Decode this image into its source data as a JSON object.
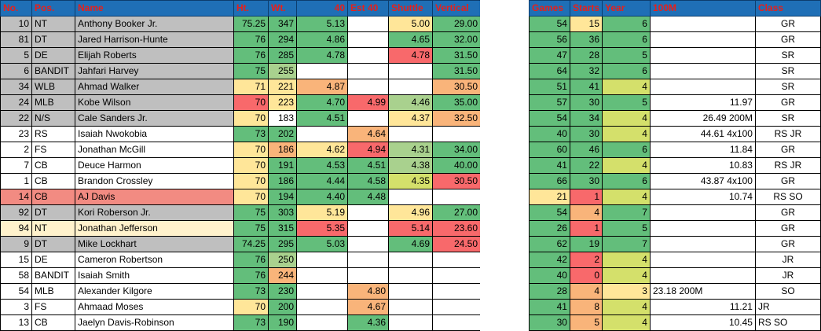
{
  "colors": {
    "header_bg": "#1f6fb6",
    "header_text": "#e8201a",
    "gray": "#bfbfbf",
    "red_row": "#f28b82",
    "cream_row": "#fff2cc",
    "white": "#ffffff",
    "g": "#63be7b",
    "lg": "#a9d18e",
    "yg": "#d4e06b",
    "y": "#ffe699",
    "o": "#f9b47a",
    "r": "#f8696b"
  },
  "left_headers": [
    "No.",
    "Pos.",
    "Name",
    "Ht.",
    "Wt.",
    "40",
    "Est 40",
    "Shuttle",
    "Vertical"
  ],
  "right_headers": [
    "Games",
    "Starts",
    "Year",
    "100M",
    "Class"
  ],
  "rows": [
    {
      "no": "10",
      "pos": "NT",
      "name": "Anthony Booker Jr.",
      "ht": "75.25",
      "wt": "347",
      "forty": "5.13",
      "est40": "",
      "shuttle": "5.00",
      "vertical": "29.00",
      "games": "54",
      "starts": "15",
      "year": "6",
      "m100": "",
      "m100_align": "r",
      "cls": "GR",
      "cls_align": "c",
      "fill": "gray",
      "c_ht": "g",
      "c_wt": "g",
      "c_forty": "g",
      "c_est40": "white",
      "c_shuttle": "y",
      "c_vertical": "g",
      "c_games": "g",
      "c_starts": "y",
      "c_year": "g"
    },
    {
      "no": "81",
      "pos": "DT",
      "name": "Jared Harrison-Hunte",
      "ht": "76",
      "wt": "294",
      "forty": "4.86",
      "est40": "",
      "shuttle": "4.65",
      "vertical": "32.00",
      "games": "56",
      "starts": "36",
      "year": "6",
      "m100": "",
      "m100_align": "r",
      "cls": "GR",
      "cls_align": "c",
      "fill": "gray",
      "c_ht": "g",
      "c_wt": "g",
      "c_forty": "g",
      "c_est40": "white",
      "c_shuttle": "g",
      "c_vertical": "g",
      "c_games": "g",
      "c_starts": "g",
      "c_year": "g"
    },
    {
      "no": "5",
      "pos": "DE",
      "name": "Elijah Roberts",
      "ht": "76",
      "wt": "285",
      "forty": "4.78",
      "est40": "",
      "shuttle": "4.78",
      "vertical": "31.50",
      "games": "47",
      "starts": "28",
      "year": "5",
      "m100": "",
      "m100_align": "r",
      "cls": "SR",
      "cls_align": "c",
      "fill": "gray",
      "c_ht": "g",
      "c_wt": "g",
      "c_forty": "g",
      "c_est40": "white",
      "c_shuttle": "r",
      "c_vertical": "g",
      "c_games": "g",
      "c_starts": "g",
      "c_year": "g"
    },
    {
      "no": "6",
      "pos": "BANDIT",
      "name": "Jahfari Harvey",
      "ht": "75",
      "wt": "255",
      "forty": "",
      "est40": "",
      "shuttle": "",
      "vertical": "31.50",
      "games": "64",
      "starts": "32",
      "year": "6",
      "m100": "",
      "m100_align": "r",
      "cls": "SR",
      "cls_align": "c",
      "fill": "gray",
      "c_ht": "g",
      "c_wt": "lg",
      "c_forty": "white",
      "c_est40": "white",
      "c_shuttle": "white",
      "c_vertical": "g",
      "c_games": "g",
      "c_starts": "g",
      "c_year": "g"
    },
    {
      "no": "34",
      "pos": "WLB",
      "name": "Ahmad Walker",
      "ht": "71",
      "wt": "221",
      "forty": "4.87",
      "est40": "",
      "shuttle": "",
      "vertical": "30.50",
      "games": "51",
      "starts": "41",
      "year": "4",
      "m100": "",
      "m100_align": "r",
      "cls": "SR",
      "cls_align": "c",
      "fill": "gray",
      "c_ht": "y",
      "c_wt": "y",
      "c_forty": "o",
      "c_est40": "white",
      "c_shuttle": "white",
      "c_vertical": "o",
      "c_games": "g",
      "c_starts": "g",
      "c_year": "yg"
    },
    {
      "no": "24",
      "pos": "MLB",
      "name": "Kobe Wilson",
      "ht": "70",
      "wt": "223",
      "forty": "4.70",
      "est40": "4.99",
      "shuttle": "4.46",
      "vertical": "35.00",
      "games": "57",
      "starts": "30",
      "year": "5",
      "m100": "11.97",
      "m100_align": "r",
      "cls": "GR",
      "cls_align": "c",
      "fill": "gray",
      "c_ht": "r",
      "c_wt": "y",
      "c_forty": "g",
      "c_est40": "r",
      "c_shuttle": "lg",
      "c_vertical": "g",
      "c_games": "g",
      "c_starts": "g",
      "c_year": "g"
    },
    {
      "no": "22",
      "pos": "N/S",
      "name": "Cale Sanders Jr.",
      "ht": "70",
      "wt": "183",
      "forty": "4.51",
      "est40": "",
      "shuttle": "4.37",
      "vertical": "32.50",
      "games": "54",
      "starts": "34",
      "year": "4",
      "m100": "26.49 200M",
      "m100_align": "r",
      "cls": "SR",
      "cls_align": "c",
      "fill": "gray",
      "c_ht": "y",
      "c_wt": "white",
      "c_forty": "g",
      "c_est40": "white",
      "c_shuttle": "y",
      "c_vertical": "o",
      "c_games": "g",
      "c_starts": "g",
      "c_year": "yg"
    },
    {
      "no": "23",
      "pos": "RS",
      "name": "Isaiah Nwokobia",
      "ht": "73",
      "wt": "202",
      "forty": "",
      "est40": "4.64",
      "shuttle": "",
      "vertical": "",
      "games": "40",
      "starts": "30",
      "year": "4",
      "m100": "44.61 4x100",
      "m100_align": "r",
      "cls": "RS JR",
      "cls_align": "c",
      "fill": "white",
      "c_ht": "g",
      "c_wt": "g",
      "c_forty": "white",
      "c_est40": "o",
      "c_shuttle": "white",
      "c_vertical": "white",
      "c_games": "g",
      "c_starts": "g",
      "c_year": "yg"
    },
    {
      "no": "2",
      "pos": "FS",
      "name": "Jonathan McGill",
      "ht": "70",
      "wt": "186",
      "forty": "4.62",
      "est40": "4.94",
      "shuttle": "4.31",
      "vertical": "34.00",
      "games": "60",
      "starts": "46",
      "year": "6",
      "m100": "11.84",
      "m100_align": "r",
      "cls": "GR",
      "cls_align": "c",
      "fill": "white",
      "c_ht": "y",
      "c_wt": "o",
      "c_forty": "y",
      "c_est40": "r",
      "c_shuttle": "lg",
      "c_vertical": "g",
      "c_games": "g",
      "c_starts": "g",
      "c_year": "g"
    },
    {
      "no": "7",
      "pos": "CB",
      "name": "Deuce Harmon",
      "ht": "70",
      "wt": "191",
      "forty": "4.53",
      "est40": "4.51",
      "shuttle": "4.38",
      "vertical": "40.00",
      "games": "41",
      "starts": "22",
      "year": "4",
      "m100": "10.83",
      "m100_align": "r",
      "cls": "RS JR",
      "cls_align": "c",
      "fill": "white",
      "c_ht": "y",
      "c_wt": "g",
      "c_forty": "g",
      "c_est40": "g",
      "c_shuttle": "lg",
      "c_vertical": "g",
      "c_games": "g",
      "c_starts": "g",
      "c_year": "yg"
    },
    {
      "no": "1",
      "pos": "CB",
      "name": "Brandon Crossley",
      "ht": "70",
      "wt": "186",
      "forty": "4.44",
      "est40": "4.58",
      "shuttle": "4.35",
      "vertical": "30.50",
      "games": "66",
      "starts": "30",
      "year": "6",
      "m100": "43.87 4x100",
      "m100_align": "r",
      "cls": "GR",
      "cls_align": "c",
      "fill": "white",
      "c_ht": "y",
      "c_wt": "g",
      "c_forty": "g",
      "c_est40": "g",
      "c_shuttle": "yg",
      "c_vertical": "r",
      "c_games": "g",
      "c_starts": "g",
      "c_year": "g"
    },
    {
      "no": "14",
      "pos": "CB",
      "name": "AJ Davis",
      "ht": "70",
      "wt": "194",
      "forty": "4.40",
      "est40": "4.48",
      "shuttle": "",
      "vertical": "",
      "games": "21",
      "starts": "1",
      "year": "4",
      "m100": "10.74",
      "m100_align": "r",
      "cls": "RS SO",
      "cls_align": "c",
      "fill": "red_row",
      "c_ht": "y",
      "c_wt": "g",
      "c_forty": "g",
      "c_est40": "g",
      "c_shuttle": "white",
      "c_vertical": "white",
      "c_games": "y",
      "c_starts": "r",
      "c_year": "yg"
    },
    {
      "no": "92",
      "pos": "DT",
      "name": "Kori Roberson Jr.",
      "ht": "75",
      "wt": "303",
      "forty": "5.19",
      "est40": "",
      "shuttle": "4.96",
      "vertical": "27.00",
      "games": "54",
      "starts": "4",
      "year": "7",
      "m100": "",
      "m100_align": "r",
      "cls": "GR",
      "cls_align": "c",
      "fill": "gray",
      "c_ht": "g",
      "c_wt": "g",
      "c_forty": "y",
      "c_est40": "white",
      "c_shuttle": "y",
      "c_vertical": "g",
      "c_games": "g",
      "c_starts": "o",
      "c_year": "g"
    },
    {
      "no": "94",
      "pos": "NT",
      "name": "Jonathan Jefferson",
      "ht": "75",
      "wt": "315",
      "forty": "5.35",
      "est40": "",
      "shuttle": "5.14",
      "vertical": "23.60",
      "games": "26",
      "starts": "1",
      "year": "5",
      "m100": "",
      "m100_align": "r",
      "cls": "GR",
      "cls_align": "c",
      "fill": "cream_row",
      "c_ht": "g",
      "c_wt": "g",
      "c_forty": "r",
      "c_est40": "white",
      "c_shuttle": "r",
      "c_vertical": "r",
      "c_games": "g",
      "c_starts": "r",
      "c_year": "g"
    },
    {
      "no": "9",
      "pos": "DT",
      "name": "Mike Lockhart",
      "ht": "74.25",
      "wt": "295",
      "forty": "5.03",
      "est40": "",
      "shuttle": "4.69",
      "vertical": "24.50",
      "games": "62",
      "starts": "19",
      "year": "7",
      "m100": "",
      "m100_align": "r",
      "cls": "GR",
      "cls_align": "c",
      "fill": "gray",
      "c_ht": "g",
      "c_wt": "g",
      "c_forty": "g",
      "c_est40": "white",
      "c_shuttle": "g",
      "c_vertical": "r",
      "c_games": "g",
      "c_starts": "g",
      "c_year": "g"
    },
    {
      "no": "15",
      "pos": "DE",
      "name": "Cameron Robertson",
      "ht": "76",
      "wt": "250",
      "forty": "",
      "est40": "",
      "shuttle": "",
      "vertical": "",
      "games": "42",
      "starts": "2",
      "year": "4",
      "m100": "",
      "m100_align": "r",
      "cls": "JR",
      "cls_align": "c",
      "fill": "white",
      "c_ht": "g",
      "c_wt": "lg",
      "c_forty": "white",
      "c_est40": "white",
      "c_shuttle": "white",
      "c_vertical": "white",
      "c_games": "g",
      "c_starts": "r",
      "c_year": "yg"
    },
    {
      "no": "58",
      "pos": "BANDIT",
      "name": "Isaiah Smith",
      "ht": "76",
      "wt": "244",
      "forty": "",
      "est40": "",
      "shuttle": "",
      "vertical": "",
      "games": "40",
      "starts": "0",
      "year": "4",
      "m100": "",
      "m100_align": "r",
      "cls": "JR",
      "cls_align": "c",
      "fill": "white",
      "c_ht": "g",
      "c_wt": "o",
      "c_forty": "white",
      "c_est40": "white",
      "c_shuttle": "white",
      "c_vertical": "white",
      "c_games": "g",
      "c_starts": "r",
      "c_year": "yg"
    },
    {
      "no": "54",
      "pos": "MLB",
      "name": "Alexander Kilgore",
      "ht": "73",
      "wt": "230",
      "forty": "",
      "est40": "4.80",
      "shuttle": "",
      "vertical": "",
      "games": "28",
      "starts": "4",
      "year": "3",
      "m100": "23.18 200M",
      "m100_align": "l",
      "cls": "SO",
      "cls_align": "c",
      "fill": "white",
      "c_ht": "g",
      "c_wt": "g",
      "c_forty": "white",
      "c_est40": "o",
      "c_shuttle": "white",
      "c_vertical": "white",
      "c_games": "g",
      "c_starts": "o",
      "c_year": "y"
    },
    {
      "no": "3",
      "pos": "FS",
      "name": "Ahmaad Moses",
      "ht": "70",
      "wt": "200",
      "forty": "",
      "est40": "4.67",
      "shuttle": "",
      "vertical": "",
      "games": "41",
      "starts": "8",
      "year": "4",
      "m100": "11.21",
      "m100_align": "r",
      "cls": "JR",
      "cls_align": "l",
      "fill": "white",
      "c_ht": "y",
      "c_wt": "g",
      "c_forty": "white",
      "c_est40": "o",
      "c_shuttle": "white",
      "c_vertical": "white",
      "c_games": "g",
      "c_starts": "o",
      "c_year": "yg"
    },
    {
      "no": "13",
      "pos": "CB",
      "name": "Jaelyn Davis-Robinson",
      "ht": "73",
      "wt": "190",
      "forty": "",
      "est40": "4.36",
      "shuttle": "",
      "vertical": "",
      "games": "30",
      "starts": "5",
      "year": "4",
      "m100": "10.45",
      "m100_align": "r",
      "cls": "RS SO",
      "cls_align": "l",
      "fill": "white",
      "c_ht": "g",
      "c_wt": "g",
      "c_forty": "white",
      "c_est40": "g",
      "c_shuttle": "white",
      "c_vertical": "white",
      "c_games": "g",
      "c_starts": "o",
      "c_year": "yg"
    }
  ]
}
